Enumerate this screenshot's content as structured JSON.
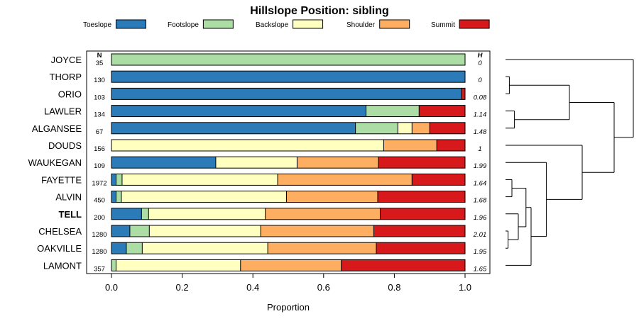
{
  "chart_data": {
    "type": "bar",
    "orientation": "horizontal",
    "stacked": true,
    "title": "Hillslope Position: sibling",
    "xlabel": "Proportion",
    "xlim": [
      0,
      1
    ],
    "xticks": [
      "0.0",
      "0.2",
      "0.4",
      "0.6",
      "0.8",
      "1.0"
    ],
    "n_header": "N",
    "h_header": "H",
    "legend": [
      {
        "name": "Toeslope",
        "color": "#2b7bb9"
      },
      {
        "name": "Footslope",
        "color": "#abdda4"
      },
      {
        "name": "Backslope",
        "color": "#ffffbf"
      },
      {
        "name": "Shoulder",
        "color": "#fdae61"
      },
      {
        "name": "Summit",
        "color": "#d7191c"
      }
    ],
    "rows": [
      {
        "label": "JOYCE",
        "n": "35",
        "h": "0",
        "bold": false,
        "values": [
          0,
          1.0,
          0,
          0,
          0
        ]
      },
      {
        "label": "THORP",
        "n": "130",
        "h": "0",
        "bold": false,
        "values": [
          1.0,
          0,
          0,
          0,
          0
        ]
      },
      {
        "label": "ORIO",
        "n": "103",
        "h": "0.08",
        "bold": false,
        "values": [
          0.99,
          0,
          0,
          0,
          0.01
        ]
      },
      {
        "label": "LAWLER",
        "n": "134",
        "h": "1.14",
        "bold": false,
        "values": [
          0.72,
          0.15,
          0,
          0,
          0.13
        ]
      },
      {
        "label": "ALGANSEE",
        "n": "67",
        "h": "1.48",
        "bold": false,
        "values": [
          0.69,
          0.12,
          0.04,
          0.05,
          0.1
        ]
      },
      {
        "label": "DOUDS",
        "n": "156",
        "h": "1",
        "bold": false,
        "values": [
          0,
          0,
          0.77,
          0.15,
          0.08
        ]
      },
      {
        "label": "WAUKEGAN",
        "n": "109",
        "h": "1.99",
        "bold": false,
        "values": [
          0.295,
          0,
          0.23,
          0.23,
          0.245
        ]
      },
      {
        "label": "FAYETTE",
        "n": "1972",
        "h": "1.64",
        "bold": false,
        "values": [
          0.013,
          0.017,
          0.44,
          0.38,
          0.15
        ]
      },
      {
        "label": "ALVIN",
        "n": "450",
        "h": "1.68",
        "bold": false,
        "values": [
          0.013,
          0.015,
          0.467,
          0.258,
          0.247
        ]
      },
      {
        "label": "TELL",
        "n": "200",
        "h": "1.96",
        "bold": true,
        "values": [
          0.085,
          0.02,
          0.33,
          0.325,
          0.24
        ]
      },
      {
        "label": "CHELSEA",
        "n": "1280",
        "h": "2.01",
        "bold": false,
        "values": [
          0.052,
          0.055,
          0.315,
          0.32,
          0.258
        ]
      },
      {
        "label": "OAKVILLE",
        "n": "1280",
        "h": "1.95",
        "bold": false,
        "values": [
          0.042,
          0.045,
          0.355,
          0.307,
          0.251
        ]
      },
      {
        "label": "LAMONT",
        "n": "357",
        "h": "1.65",
        "bold": false,
        "values": [
          0,
          0.013,
          0.352,
          0.285,
          0.35
        ]
      }
    ],
    "dendrogram": {
      "order": [
        "JOYCE",
        "THORP",
        "ORIO",
        "LAWLER",
        "ALGANSEE",
        "DOUDS",
        "WAUKEGAN",
        "FAYETTE",
        "ALVIN",
        "TELL",
        "CHELSEA",
        "OAKVILLE",
        "LAMONT"
      ],
      "merges": [
        {
          "a": "THORP",
          "b": "ORIO",
          "height": 0.03
        },
        {
          "a": "LAWLER",
          "b": "ALGANSEE",
          "height": 0.07
        },
        {
          "a": "CHELSEA",
          "b": "OAKVILLE",
          "height": 0.02
        },
        {
          "a": "FAYETTE",
          "b": "ALVIN",
          "height": 0.05
        },
        {
          "a": "TELL",
          "b": "CHELSEA+OAKVILLE",
          "height": 0.1
        },
        {
          "a": "FAYETTE+ALVIN",
          "b": "TELL+CHELSEA+OAKVILLE",
          "height": 0.16
        },
        {
          "a": "FAYETTE+ALVIN+TELL+CHELSEA+OAKVILLE",
          "b": "LAMONT",
          "height": 0.2
        },
        {
          "a": "WAUKEGAN",
          "b": "FAYETTE..LAMONT",
          "height": 0.32
        },
        {
          "a": "THORP+ORIO",
          "b": "LAWLER+ALGANSEE",
          "height": 0.5
        },
        {
          "a": "DOUDS",
          "b": "WAUKEGAN..LAMONT",
          "height": 0.6
        },
        {
          "a": "THORP..ALGANSEE",
          "b": "DOUDS..LAMONT",
          "height": 0.85
        },
        {
          "a": "JOYCE",
          "b": "THORP..LAMONT",
          "height": 1.0
        }
      ]
    }
  }
}
